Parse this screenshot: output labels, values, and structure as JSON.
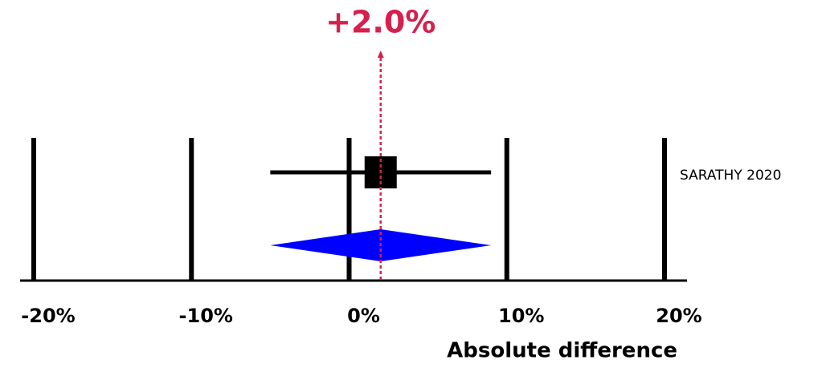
{
  "chart_data": {
    "type": "forest",
    "xlabel": "Absolute difference",
    "xlim": [
      -20,
      20
    ],
    "xticks": [
      {
        "value": -20,
        "label": "-20%"
      },
      {
        "value": -10,
        "label": "-10%"
      },
      {
        "value": 0,
        "label": "0%"
      },
      {
        "value": 10,
        "label": "10%"
      },
      {
        "value": 20,
        "label": "20%"
      }
    ],
    "grid": true,
    "studies": [
      {
        "name": "SARATHY 2020",
        "estimate": 2.0,
        "lower": -5,
        "upper": 9,
        "color": "#000000"
      }
    ],
    "pooled": {
      "estimate": 2.0,
      "lower": -5,
      "upper": 9,
      "label": "+2.0%",
      "color": "#0000ff",
      "line_color": "#d6204e"
    }
  }
}
